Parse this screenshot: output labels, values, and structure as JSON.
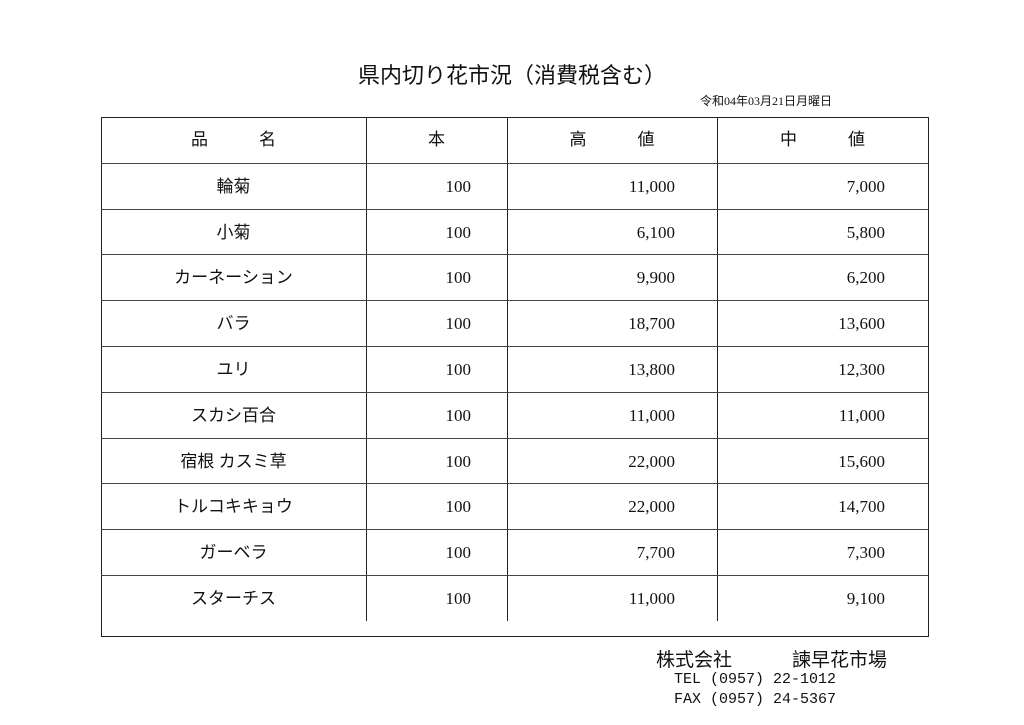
{
  "title": "県内切り花市況（消費税含む）",
  "date": "令和04年03月21日月曜日",
  "table": {
    "header": [
      "品　　　名",
      "本",
      "高　　　値",
      "中　　　値"
    ],
    "rows": [
      [
        "輪菊",
        "100",
        "11,000",
        "7,000"
      ],
      [
        "小菊",
        "100",
        "6,100",
        "5,800"
      ],
      [
        "カーネーション",
        "100",
        "9,900",
        "6,200"
      ],
      [
        "バラ",
        "100",
        "18,700",
        "13,600"
      ],
      [
        "ユリ",
        "100",
        "13,800",
        "12,300"
      ],
      [
        "スカシ百合",
        "100",
        "11,000",
        "11,000"
      ],
      [
        "宿根 カスミ草",
        "100",
        "22,000",
        "15,600"
      ],
      [
        "トルコキキョウ",
        "100",
        "22,000",
        "14,700"
      ],
      [
        "ガーベラ",
        "100",
        "7,700",
        "7,300"
      ],
      [
        "スターチス",
        "100",
        "11,000",
        "9,100"
      ]
    ]
  },
  "footer": {
    "company": "株式会社",
    "market": "諫早花市場",
    "tel": "TEL (0957) 22-1012",
    "fax": "FAX (0957) 24-5367"
  }
}
